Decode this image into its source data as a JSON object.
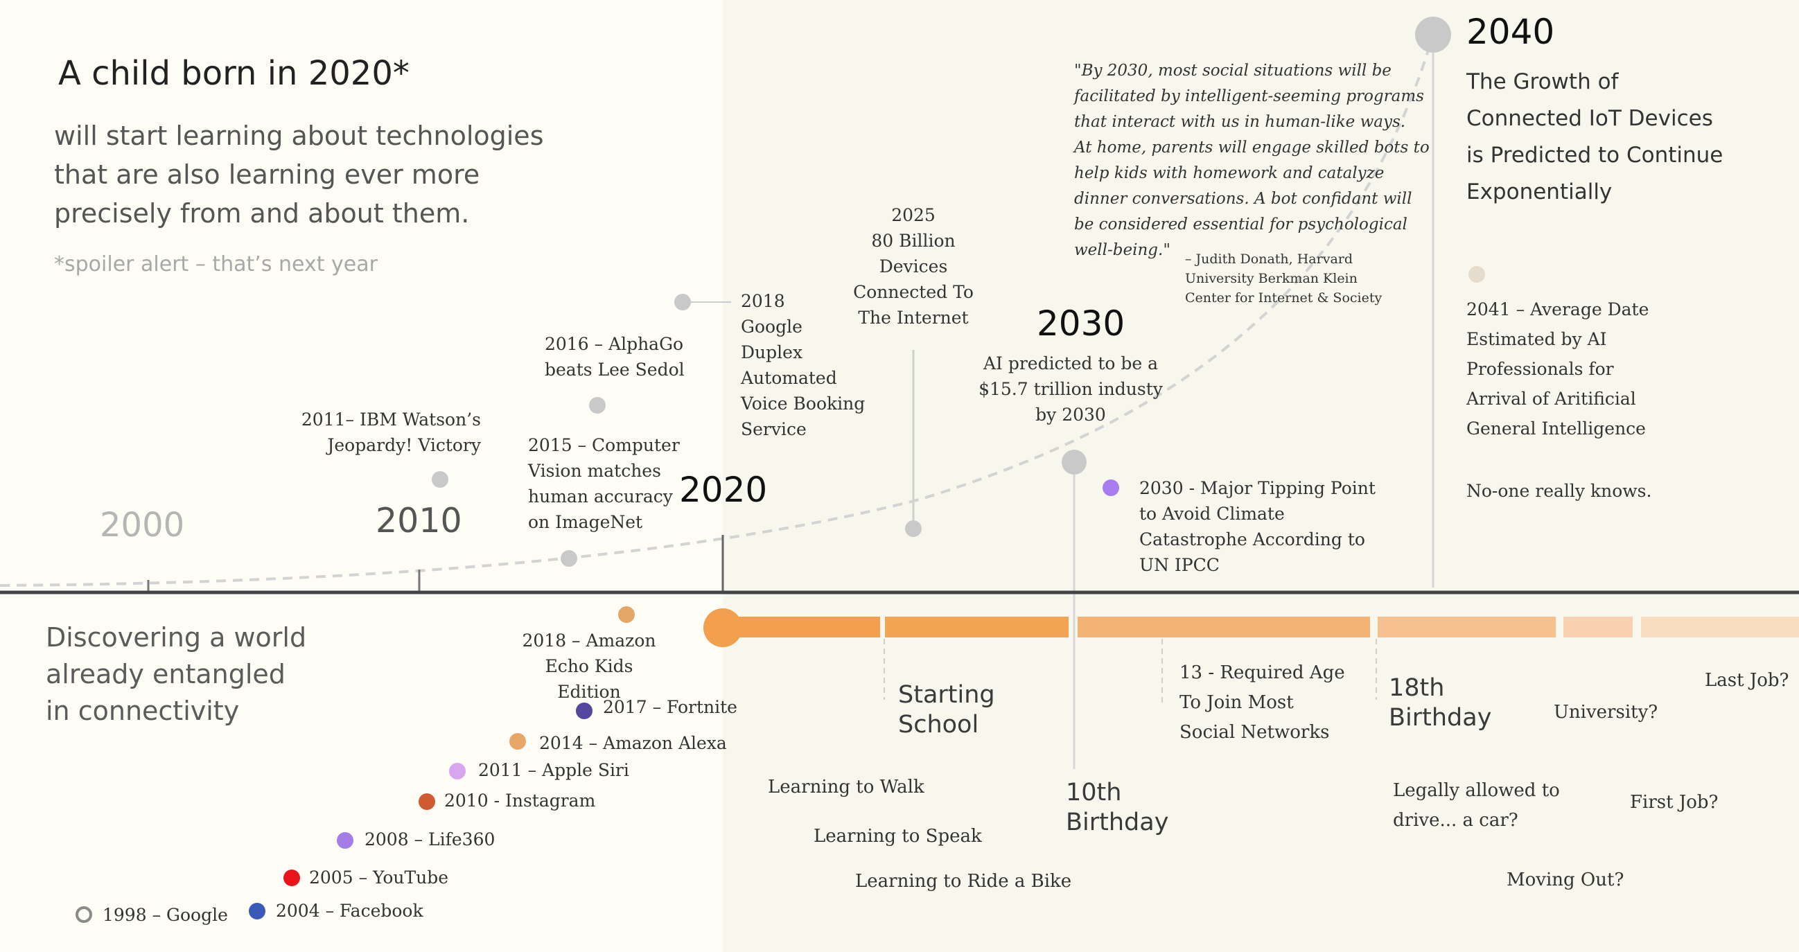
{
  "header": {
    "title": "A child born in 2020*",
    "subtitle": "will start learning about technologies\nthat are also learning ever more\nprecisely from and about them.",
    "footnote": "*spoiler alert – that’s next year"
  },
  "left_caption": "Discovering a world\nalready entangled\nin connectivity",
  "years": {
    "y2000": "2000",
    "y2010": "2010",
    "y2020": "2020",
    "y2030": "2030",
    "y2040": "2040"
  },
  "ai_events": {
    "watson": "2011–  IBM Watson’s\nJeopardy! Victory",
    "alphago": "2016 – AlphaGo\nbeats Lee Sedol",
    "vision": "2015 – Computer\nVision matches\nhuman accuracy\non ImageNet",
    "duplex": "2018\nGoogle\nDuplex\nAutomated\nVoice Booking\nService",
    "devices": "2025\n80 Billion\nDevices\nConnected To\nThe Internet",
    "ai_industry": "AI predicted to be a\n$15.7 trillion industy\nby 2030",
    "climate": "2030 - Major Tipping Point\nto Avoid Climate\nCatastrophe  According to\nUN IPCC",
    "agi": "2041 – Average Date\nEstimated by AI\nProfessionals for\nArrival of Aritificial\nGeneral Intelligence",
    "no_one": "No-one really knows."
  },
  "quote": {
    "text": "\"By 2030, most social situations will be\nfacilitated by intelligent-seeming programs\nthat interact with us in human-like ways.\nAt home, parents will engage skilled bots to\nhelp kids with homework and catalyze\ndinner conversations. A bot confidant will\nbe considered essential for psychological\nwell-being.\"",
    "attribution": "– Judith Donath, Harvard\nUniversity Berkman Klein\nCenter for Internet & Society"
  },
  "iot_title": "The Growth of\nConnected IoT Devices\nis Predicted to Continue\nExponentially",
  "products": {
    "echo_kids": "2018 – Amazon\nEcho Kids Edition",
    "fortnite": "2017 – Fortnite",
    "alexa": "2014 – Amazon Alexa",
    "siri": "2011 – Apple Siri",
    "instagram": "2010 - Instagram",
    "life360": "2008 – Life360",
    "youtube": "2005 – YouTube",
    "google": "1998 – Google",
    "facebook": "2004 – Facebook"
  },
  "milestones": {
    "starting_school": "Starting\nSchool",
    "tenth_birthday": "10th\nBirthday",
    "eighteenth_birthday": "18th\nBirthday",
    "social_networks": "13 - Required Age\nTo Join Most\nSocial Networks",
    "university": "University?",
    "last_job": "Last Job?",
    "walk": "Learning to Walk",
    "speak": "Learning to Speak",
    "bike": "Learning to Ride a Bike",
    "drive": "Legally allowed to\ndrive... a car?",
    "first_job": "First Job?",
    "moving_out": "Moving Out?"
  },
  "colors": {
    "background_left": "#fdfcf5",
    "background_right": "#f8f7ee",
    "axis": "#444444",
    "orange": "#f29f4e",
    "gray_dot": "#c9c9c9",
    "google": "#8a8a8a",
    "facebook": "#3a5ab8",
    "youtube": "#e8141a",
    "life360": "#a57de6",
    "instagram": "#d05a32",
    "siri": "#d8a6ee",
    "alexa": "#e8a668",
    "fortnite": "#5546a0",
    "echo_kids": "#e2a766",
    "climate": "#a77cf0",
    "agi_dot": "#e5dccd"
  },
  "icons": {
    "product_dot": "circle-icon",
    "event_dot": "circle-icon",
    "google_dot": "ring-icon"
  }
}
